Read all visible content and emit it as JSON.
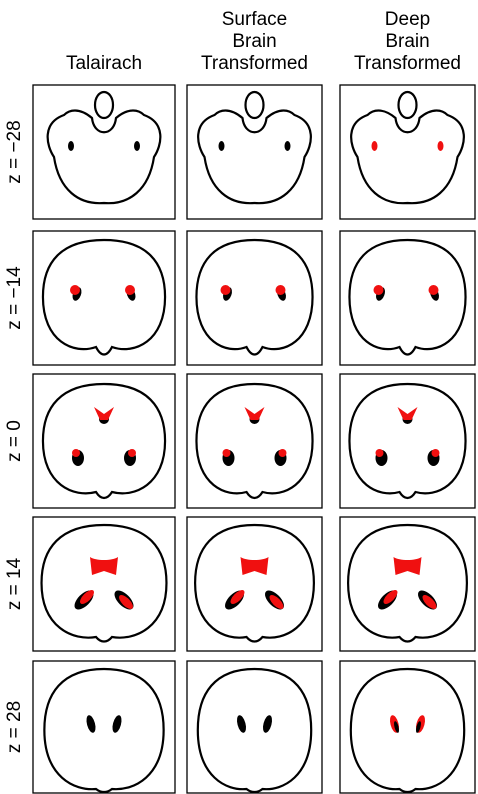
{
  "columns": [
    [
      "Talairach"
    ],
    [
      "Surface",
      "Brain",
      "Transformed"
    ],
    [
      "Deep",
      "Brain",
      "Transformed"
    ]
  ],
  "rows": [
    "z = −28",
    "z = −14",
    "z = 0",
    "z = 14",
    "z = 28"
  ]
}
